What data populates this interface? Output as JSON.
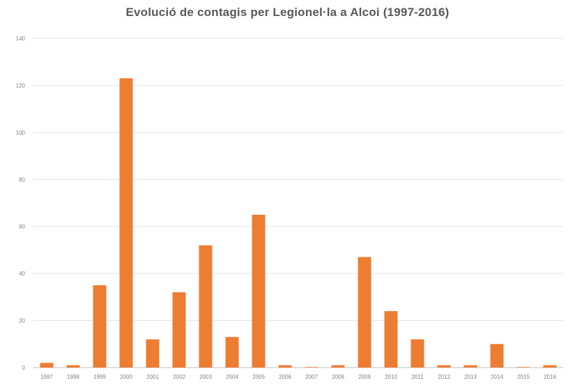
{
  "chart_data": {
    "type": "bar",
    "title": "Evolució de contagis per Legionel·la a Alcoi (1997-2016)",
    "xlabel": "",
    "ylabel": "",
    "ylim": [
      0,
      140
    ],
    "yticks": [
      0,
      20,
      40,
      60,
      80,
      100,
      120,
      140
    ],
    "grid": true,
    "legend": "none",
    "bar_color": "#ED7D31",
    "categories": [
      "1997",
      "1998",
      "1999",
      "2000",
      "2001",
      "2002",
      "2003",
      "2004",
      "2005",
      "2006",
      "2007",
      "2008",
      "2009",
      "2010",
      "2011",
      "2012",
      "2013",
      "2014",
      "2015",
      "2016"
    ],
    "values": [
      2,
      1,
      35,
      123,
      12,
      32,
      52,
      13,
      65,
      1,
      0,
      1,
      47,
      24,
      12,
      1,
      1,
      10,
      0,
      1
    ]
  }
}
